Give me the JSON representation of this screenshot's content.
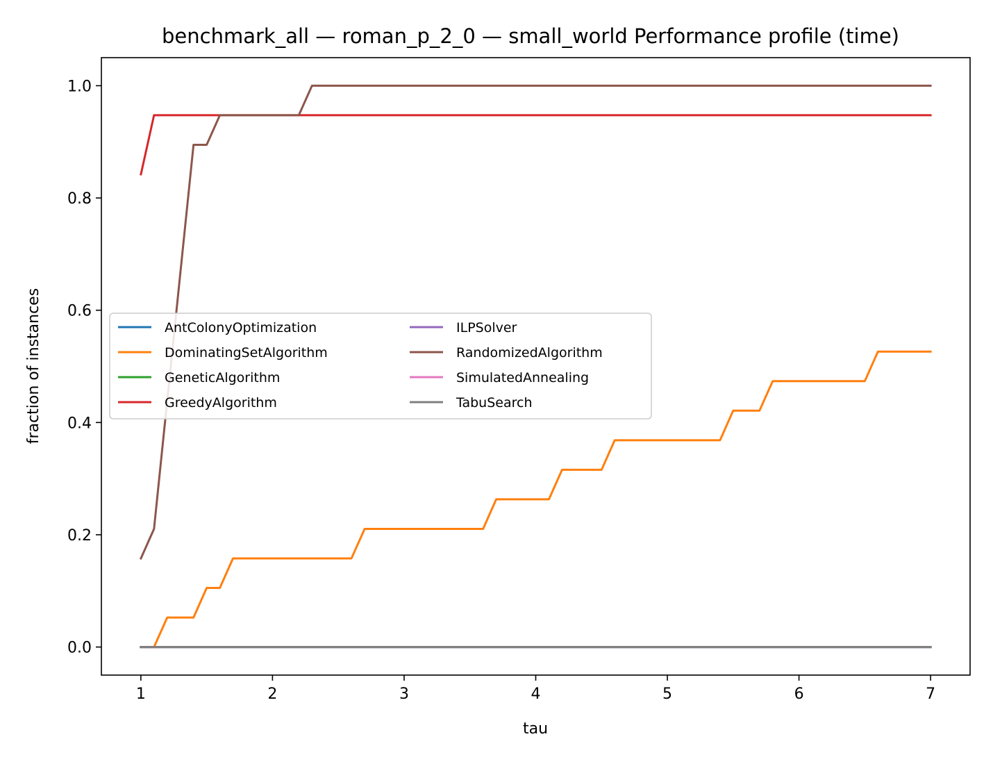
{
  "chart_data": {
    "type": "line",
    "title": "benchmark_all — roman_p_2_0 — small_world Performance profile (time)",
    "xlabel": "tau",
    "ylabel": "fraction of instances",
    "xlim": [
      0.7,
      7.3
    ],
    "ylim": [
      -0.05,
      1.05
    ],
    "xticks": [
      "1",
      "2",
      "3",
      "4",
      "5",
      "6",
      "7"
    ],
    "yticks": [
      "0.0",
      "0.2",
      "0.4",
      "0.6",
      "0.8",
      "1.0"
    ],
    "grid": false,
    "legend_position": "center-left",
    "series": [
      {
        "name": "AntColonyOptimization",
        "color": "#1f77b4",
        "x": [
          1,
          7
        ],
        "y": [
          0,
          0
        ]
      },
      {
        "name": "DominatingSetAlgorithm",
        "color": "#ff7f0e",
        "x": [
          1,
          1.1,
          1.2,
          1.4,
          1.5,
          1.6,
          1.7,
          2.6,
          2.7,
          3.6,
          3.7,
          4.1,
          4.2,
          4.5,
          4.6,
          5.4,
          5.5,
          5.7,
          5.8,
          6.5,
          6.6,
          7
        ],
        "y": [
          0,
          0,
          0.0526,
          0.0526,
          0.1053,
          0.1053,
          0.1579,
          0.1579,
          0.2105,
          0.2105,
          0.2632,
          0.2632,
          0.3158,
          0.3158,
          0.3684,
          0.3684,
          0.4211,
          0.4211,
          0.4737,
          0.4737,
          0.5263,
          0.5263
        ]
      },
      {
        "name": "GeneticAlgorithm",
        "color": "#2ca02c",
        "x": [
          1,
          7
        ],
        "y": [
          0,
          0
        ]
      },
      {
        "name": "GreedyAlgorithm",
        "color": "#d62728",
        "x": [
          1,
          1.1,
          7
        ],
        "y": [
          0.8421,
          0.9474,
          0.9474
        ]
      },
      {
        "name": "ILPSolver",
        "color": "#9467bd",
        "x": [
          1,
          7
        ],
        "y": [
          0,
          0
        ]
      },
      {
        "name": "RandomizedAlgorithm",
        "color": "#8c564b",
        "x": [
          1,
          1.1,
          1.4,
          1.5,
          1.6,
          2.2,
          2.3,
          7
        ],
        "y": [
          0.1579,
          0.2105,
          0.8947,
          0.8947,
          0.9474,
          0.9474,
          1.0,
          1.0
        ]
      },
      {
        "name": "SimulatedAnnealing",
        "color": "#e377c2",
        "x": [
          1,
          7
        ],
        "y": [
          0,
          0
        ]
      },
      {
        "name": "TabuSearch",
        "color": "#7f7f7f",
        "x": [
          1,
          7
        ],
        "y": [
          0,
          0
        ]
      }
    ]
  }
}
